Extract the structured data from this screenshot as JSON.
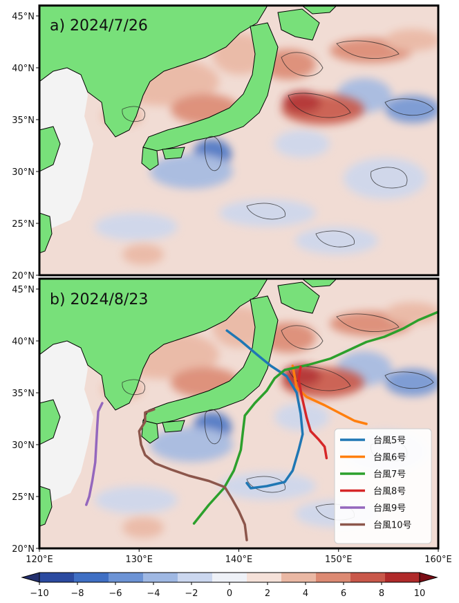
{
  "chart_data": {
    "type": "heatmap",
    "map_extent": {
      "lon": [
        120,
        160
      ],
      "lat_panel_a": [
        20,
        46
      ],
      "lat_panel_b": [
        20,
        46
      ]
    },
    "lon_ticks": [
      {
        "v": 120,
        "t": "120°E"
      },
      {
        "v": 130,
        "t": "130°E"
      },
      {
        "v": 140,
        "t": "140°E"
      },
      {
        "v": 150,
        "t": "150°E"
      },
      {
        "v": 160,
        "t": "160°E"
      }
    ],
    "lat_ticks_a": [
      {
        "v": 45,
        "t": "45°N"
      },
      {
        "v": 40,
        "t": "40°N"
      },
      {
        "v": 35,
        "t": "35°N"
      },
      {
        "v": 30,
        "t": "30°N"
      },
      {
        "v": 25,
        "t": "25°N"
      },
      {
        "v": 20,
        "t": "20°N"
      }
    ],
    "lat_ticks_b": [
      {
        "v": 45,
        "t": "45°N"
      },
      {
        "v": 40,
        "t": "40°N"
      },
      {
        "v": 35,
        "t": "35°N"
      },
      {
        "v": 30,
        "t": "30°N"
      },
      {
        "v": 25,
        "t": "25°N"
      },
      {
        "v": 20,
        "t": "20°N"
      }
    ],
    "panels": [
      {
        "id": "a",
        "title": "a) 2024/7/26"
      },
      {
        "id": "b",
        "title": "b) 2024/8/23"
      }
    ],
    "colorbar": {
      "min": -10,
      "max": 10,
      "ticks": [
        -10,
        -8,
        -6,
        -4,
        -2,
        0,
        2,
        4,
        6,
        8,
        10
      ],
      "tick_labels": [
        "−10",
        "−8",
        "−6",
        "−4",
        "−2",
        "0",
        "2",
        "4",
        "6",
        "8",
        "10"
      ],
      "extend": "both",
      "colors": [
        "#23306e",
        "#2b4aa0",
        "#3f6fc4",
        "#6c93d5",
        "#9fb8e3",
        "#cbd7ef",
        "#eef1f7",
        "#f5e1d9",
        "#eab8a4",
        "#dc8a73",
        "#c9584a",
        "#b02a2a",
        "#7a0d15"
      ]
    },
    "land_color": "#78e07a",
    "typhoon_tracks": [
      {
        "name": "台風5号",
        "color": "#1f77b4",
        "lonlat": [
          [
            138.8,
            41.0
          ],
          [
            140.2,
            40.0
          ],
          [
            141.8,
            38.7
          ],
          [
            143.2,
            37.6
          ],
          [
            144.8,
            36.6
          ],
          [
            145.8,
            35.0
          ],
          [
            146.2,
            33.0
          ],
          [
            146.4,
            31.0
          ],
          [
            146.0,
            29.5
          ],
          [
            145.4,
            27.5
          ],
          [
            144.6,
            26.4
          ],
          [
            142.8,
            26.0
          ],
          [
            141.2,
            25.8
          ],
          [
            140.8,
            26.3
          ]
        ]
      },
      {
        "name": "台風6号",
        "color": "#ff7f0e",
        "lonlat": [
          [
            145.4,
            37.6
          ],
          [
            145.8,
            35.5
          ],
          [
            146.8,
            34.6
          ],
          [
            148.6,
            33.8
          ],
          [
            150.2,
            33.0
          ],
          [
            151.6,
            32.3
          ],
          [
            152.8,
            32.0
          ]
        ]
      },
      {
        "name": "台風7号",
        "color": "#2ca02c",
        "lonlat": [
          [
            135.5,
            22.4
          ],
          [
            137.0,
            24.2
          ],
          [
            138.5,
            25.8
          ],
          [
            139.5,
            27.5
          ],
          [
            140.2,
            29.5
          ],
          [
            140.4,
            31.2
          ],
          [
            140.6,
            32.8
          ],
          [
            141.6,
            34.0
          ],
          [
            142.8,
            35.2
          ],
          [
            143.6,
            36.4
          ],
          [
            144.6,
            37.2
          ],
          [
            147.0,
            37.7
          ],
          [
            149.2,
            38.3
          ],
          [
            151.0,
            39.1
          ],
          [
            152.8,
            39.9
          ],
          [
            154.6,
            40.4
          ],
          [
            156.5,
            41.2
          ],
          [
            158.0,
            42.0
          ],
          [
            160.0,
            42.8
          ]
        ]
      },
      {
        "name": "台風8号",
        "color": "#d62728",
        "lonlat": [
          [
            146.2,
            37.5
          ],
          [
            146.0,
            36.3
          ],
          [
            146.3,
            34.7
          ],
          [
            146.8,
            32.6
          ],
          [
            147.2,
            31.3
          ],
          [
            148.0,
            30.5
          ],
          [
            148.6,
            29.8
          ],
          [
            148.8,
            28.7
          ]
        ]
      },
      {
        "name": "台風9号",
        "color": "#9467bd",
        "lonlat": [
          [
            126.3,
            34.0
          ],
          [
            125.9,
            33.2
          ],
          [
            125.8,
            31.8
          ],
          [
            125.7,
            30.0
          ],
          [
            125.6,
            28.3
          ],
          [
            125.3,
            26.5
          ],
          [
            125.0,
            25.0
          ],
          [
            124.7,
            24.2
          ]
        ]
      },
      {
        "name": "台風10号",
        "color": "#8c564b",
        "lonlat": [
          [
            131.5,
            33.4
          ],
          [
            130.6,
            33.1
          ],
          [
            130.6,
            32.2
          ],
          [
            130.0,
            31.3
          ],
          [
            130.2,
            30.0
          ],
          [
            130.6,
            29.0
          ],
          [
            131.6,
            28.2
          ],
          [
            133.2,
            27.6
          ],
          [
            135.0,
            27.0
          ],
          [
            137.0,
            26.5
          ],
          [
            138.6,
            25.9
          ],
          [
            139.3,
            24.8
          ],
          [
            140.0,
            23.6
          ],
          [
            140.6,
            22.3
          ],
          [
            140.8,
            20.8
          ]
        ]
      }
    ]
  }
}
